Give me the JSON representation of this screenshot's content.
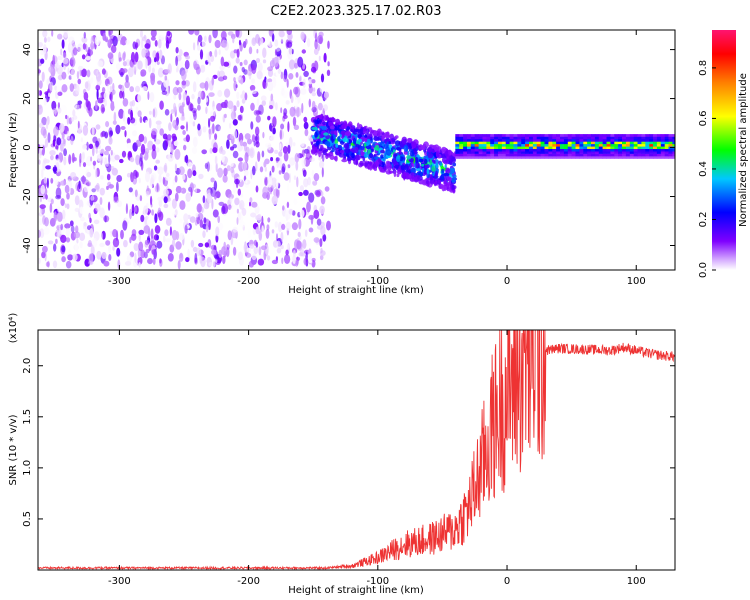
{
  "title": "C2E2.2023.325.17.02.R03",
  "chart_data": [
    {
      "type": "heatmap",
      "xlabel": "Height of straight line (km)",
      "ylabel": "Frequency (Hz)",
      "xlim": [
        -363,
        130
      ],
      "ylim": [
        -50,
        48
      ],
      "x_ticks": [
        -300,
        -200,
        -100,
        0,
        100
      ],
      "y_ticks": [
        -40,
        -20,
        0,
        20,
        40
      ],
      "colorbar": {
        "label": "Normalized spectral amplitude",
        "range": [
          0,
          0.95
        ],
        "ticks": [
          0.0,
          0.2,
          0.4,
          0.6,
          0.8
        ],
        "stops": [
          "#ffffff",
          "#7f00ff",
          "#0000ff",
          "#00ffff",
          "#00ff00",
          "#ffff00",
          "#ff7f00",
          "#ff0000",
          "#ff1493"
        ]
      },
      "regions": [
        {
          "x_range": [
            -363,
            -138
          ],
          "freq_range": [
            -48,
            48
          ],
          "amplitude_range": [
            0.0,
            0.15
          ]
        },
        {
          "x_range": [
            -150,
            -40
          ],
          "freq_center_start": 6,
          "freq_center_end": -10,
          "amplitude_range": [
            0.1,
            0.5
          ]
        },
        {
          "x_range": [
            -40,
            130
          ],
          "freq_center": 1,
          "amplitude_range": [
            0.2,
            0.75
          ]
        }
      ]
    },
    {
      "type": "line",
      "xlabel": "Height of straight line (km)",
      "ylabel": "SNR (10 * v/v)",
      "y_multiplier": "(x10⁴)",
      "xlim": [
        -363,
        130
      ],
      "ylim": [
        0.0,
        2.35
      ],
      "x_ticks": [
        -300,
        -200,
        -100,
        0,
        100
      ],
      "y_ticks": [
        0.5,
        1.0,
        1.5,
        2.0
      ],
      "y_tick_labels": [
        "0.5",
        "1.0",
        "1.5",
        "2.0"
      ],
      "series": [
        {
          "color": "#ee3333",
          "x": [
            -363,
            -300,
            -200,
            -140,
            -120,
            -100,
            -80,
            -60,
            -40,
            -30,
            -20,
            -10,
            0,
            10,
            20,
            30,
            40,
            60,
            80,
            90,
            100,
            110,
            120,
            130
          ],
          "y": [
            0.02,
            0.02,
            0.02,
            0.02,
            0.04,
            0.12,
            0.25,
            0.3,
            0.4,
            0.6,
            1.0,
            1.45,
            1.75,
            1.95,
            2.08,
            2.15,
            2.17,
            2.16,
            2.15,
            2.18,
            2.15,
            2.12,
            2.1,
            2.09
          ]
        }
      ]
    }
  ]
}
